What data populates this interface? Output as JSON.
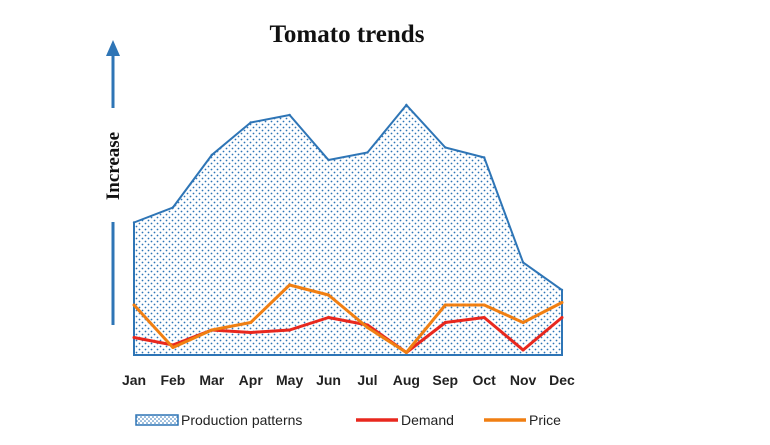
{
  "chart_data": {
    "type": "area",
    "title": "Tomato trends",
    "xlabel": "",
    "ylabel": "Increase",
    "categories": [
      "Jan",
      "Feb",
      "Mar",
      "Apr",
      "May",
      "Jun",
      "Jul",
      "Aug",
      "Sep",
      "Oct",
      "Nov",
      "Dec"
    ],
    "ylim": [
      0,
      100
    ],
    "grid": false,
    "legend_position": "bottom",
    "series": [
      {
        "name": "Production patterns",
        "kind": "area",
        "color": "#2E75B6",
        "values": [
          53,
          59,
          80,
          93,
          96,
          78,
          81,
          100,
          83,
          79,
          37,
          26
        ]
      },
      {
        "name": "Demand",
        "kind": "line",
        "color": "#E8281E",
        "values": [
          7,
          4,
          10,
          9,
          10,
          15,
          12,
          1,
          13,
          15,
          2,
          15
        ]
      },
      {
        "name": "Price",
        "kind": "line",
        "color": "#F07F12",
        "values": [
          20,
          3,
          10,
          13,
          28,
          24,
          11,
          1,
          20,
          20,
          13,
          21
        ]
      }
    ]
  }
}
